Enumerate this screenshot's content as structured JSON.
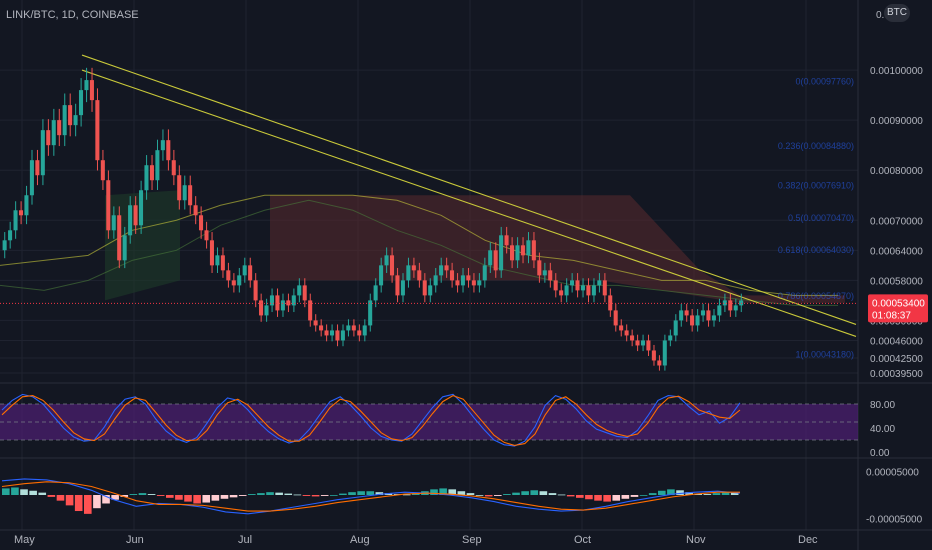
{
  "header": {
    "title": "LINK/BTC, 1D, COINBASE",
    "currency_badge": "BTC"
  },
  "colors": {
    "background": "#131722",
    "grid": "#1f2330",
    "candle_up": "#26a69a",
    "candle_down": "#ef5350",
    "trendline": "#c9c93a",
    "cloud_bear": "#5a2a2e",
    "cloud_bull": "#1e3a2a",
    "stoch_k": "#2962ff",
    "stoch_d": "#ff6d00",
    "stoch_band": "#4b1f6f",
    "price_label": "#f23645"
  },
  "chart_data": [
    {
      "type": "candlestick",
      "title": "LINK/BTC, 1D, COINBASE",
      "unit": "BTC",
      "x_ticks": [
        "May",
        "Jun",
        "Jul",
        "Aug",
        "Sep",
        "Oct",
        "Nov",
        "Dec"
      ],
      "y_ticks": [
        "0.00100000",
        "0.00090000",
        "0.00080000",
        "0.00070000",
        "0.00064000",
        "0.00058000",
        "0.00050000",
        "0.00046000",
        "0.00042500",
        "0.00039500"
      ],
      "top_tick_partial": "0.00",
      "ylim": [
        0.000385,
        0.00112
      ],
      "current_price": "0.00053400",
      "countdown": "01:08:37",
      "fib_levels": [
        {
          "label": "0(0.00097760)",
          "value": 0.0009776
        },
        {
          "label": "0.236(0.00084880)",
          "value": 0.0008488
        },
        {
          "label": "0.382(0.00076910)",
          "value": 0.0007691
        },
        {
          "label": "0.5(0.00070470)",
          "value": 0.0007047
        },
        {
          "label": "0.618(0.00064030)",
          "value": 0.0006403
        },
        {
          "label": "0.786(0.00054870)",
          "value": 0.0005487
        },
        {
          "label": "1(0.00043180)",
          "value": 0.0004318
        }
      ],
      "close_series": [
        0.00066,
        0.00068,
        0.00072,
        0.00071,
        0.00075,
        0.00082,
        0.00079,
        0.00088,
        0.00085,
        0.0009,
        0.00087,
        0.00093,
        0.00089,
        0.00091,
        0.00096,
        0.00098,
        0.00094,
        0.00082,
        0.00078,
        0.00068,
        0.00071,
        0.00062,
        0.00067,
        0.00073,
        0.00069,
        0.00076,
        0.00081,
        0.00078,
        0.00084,
        0.00086,
        0.00082,
        0.00079,
        0.00074,
        0.00077,
        0.00073,
        0.00071,
        0.00068,
        0.00066,
        0.00061,
        0.00063,
        0.0006,
        0.00058,
        0.00057,
        0.00059,
        0.00061,
        0.00058,
        0.00054,
        0.00051,
        0.00053,
        0.00055,
        0.00052,
        0.00054,
        0.00053,
        0.00055,
        0.00057,
        0.00054,
        0.0005,
        0.00049,
        0.00048,
        0.00047,
        0.00048,
        0.00046,
        0.00048,
        0.00049,
        0.00048,
        0.00047,
        0.00049,
        0.00054,
        0.00057,
        0.00061,
        0.00063,
        0.00059,
        0.00055,
        0.00058,
        0.00061,
        0.0006,
        0.00058,
        0.00055,
        0.00057,
        0.00059,
        0.00061,
        0.0006,
        0.00058,
        0.00057,
        0.00059,
        0.00058,
        0.00057,
        0.00058,
        0.00061,
        0.00064,
        0.0006,
        0.00067,
        0.00065,
        0.00062,
        0.00065,
        0.00063,
        0.00066,
        0.00062,
        0.00059,
        0.0006,
        0.00058,
        0.00056,
        0.00055,
        0.00057,
        0.00058,
        0.00056,
        0.00057,
        0.00055,
        0.00057,
        0.00058,
        0.00055,
        0.00052,
        0.00049,
        0.00048,
        0.00047,
        0.00046,
        0.00045,
        0.00046,
        0.00044,
        0.00042,
        0.00041,
        0.00046,
        0.00047,
        0.0005,
        0.00052,
        0.00051,
        0.00049,
        0.00051,
        0.00052,
        0.0005,
        0.00051,
        0.00053,
        0.00054,
        0.00052,
        0.00053,
        0.00054
      ],
      "baseline_lines": [
        {
          "name": "",
          "values": [
            0.00061,
            0.00062,
            0.00063,
            0.00068,
            0.0007,
            0.00073,
            0.00075,
            0.00075,
            0.00075,
            0.00074,
            0.00071,
            0.00066,
            0.00063,
            0.00062,
            0.0006,
            0.00058,
            0.00058,
            0.00056,
            0.00055,
            0.00055
          ]
        },
        {
          "name": "",
          "values": [
            0.00057,
            0.00056,
            0.00058,
            0.00062,
            0.00064,
            0.00069,
            0.00072,
            0.00074,
            0.00072,
            0.00068,
            0.00065,
            0.00061,
            0.00059,
            0.00057,
            0.00057,
            0.00056,
            0.00055,
            0.00054,
            0.00053,
            0.00053
          ]
        }
      ],
      "trendline_1": [
        [
          0.0,
          0.00103
        ],
        [
          1.0,
          0.000492
        ]
      ],
      "trendline_2": [
        [
          0.0,
          0.001
        ],
        [
          1.0,
          0.000468
        ]
      ]
    },
    {
      "type": "line",
      "name": "stochastic",
      "y_ticks": [
        "80.00",
        "40.00",
        "0.00"
      ],
      "ylim": [
        0,
        100
      ],
      "band": [
        20,
        80
      ],
      "series": [
        {
          "name": "",
          "values": [
            70,
            86,
            96,
            92,
            80,
            60,
            40,
            25,
            18,
            20,
            42,
            70,
            88,
            92,
            80,
            55,
            35,
            22,
            16,
            24,
            48,
            74,
            90,
            86,
            70,
            50,
            34,
            22,
            15,
            20,
            38,
            62,
            84,
            92,
            78,
            60,
            40,
            26,
            20,
            18,
            30,
            52,
            74,
            92,
            96,
            80,
            58,
            38,
            20,
            12,
            10,
            18,
            42,
            78,
            94,
            88,
            72,
            52,
            38,
            32,
            26,
            24,
            36,
            60,
            86,
            94,
            92,
            76,
            62,
            68,
            48,
            58,
            82
          ]
        },
        {
          "name": "",
          "values": [
            62,
            78,
            92,
            94,
            86,
            70,
            50,
            32,
            22,
            19,
            30,
            55,
            78,
            90,
            86,
            66,
            45,
            28,
            19,
            20,
            36,
            62,
            82,
            88,
            78,
            60,
            42,
            28,
            18,
            18,
            28,
            50,
            74,
            88,
            84,
            68,
            50,
            32,
            22,
            19,
            24,
            42,
            64,
            84,
            94,
            88,
            68,
            48,
            28,
            16,
            11,
            14,
            30,
            62,
            86,
            92,
            80,
            62,
            46,
            36,
            30,
            26,
            30,
            48,
            74,
            90,
            93,
            84,
            70,
            64,
            58,
            56,
            70
          ]
        }
      ]
    },
    {
      "type": "bar",
      "name": "macd",
      "y_ticks": [
        "0.00005000",
        "-0.00005000"
      ],
      "ylim": [
        -7e-05,
        7e-05
      ],
      "histogram": [
        1.4e-05,
        1.6e-05,
        1.2e-05,
        9e-06,
        5e-06,
        -4e-06,
        -1.2e-05,
        -2.2e-05,
        -3.4e-05,
        -4e-05,
        -2.8e-05,
        -1.8e-05,
        -1e-05,
        -4e-06,
        2e-06,
        4e-06,
        2e-06,
        -2e-06,
        -6e-06,
        -1e-05,
        -1.4e-05,
        -1.8e-05,
        -1.6e-05,
        -1.2e-05,
        -8e-06,
        -5e-06,
        -2e-06,
        2e-06,
        4e-06,
        6e-06,
        5e-06,
        3e-06,
        1e-06,
        -2e-06,
        -3e-06,
        -2e-06,
        0.0,
        3e-06,
        6e-06,
        8e-06,
        8e-06,
        6e-06,
        4e-06,
        2e-06,
        1e-06,
        4e-06,
        8e-06,
        1.2e-05,
        1.4e-05,
        1.2e-05,
        8e-06,
        4e-06,
        0.0,
        -3e-06,
        -2e-06,
        2e-06,
        5e-06,
        8e-06,
        1e-05,
        8e-06,
        4e-06,
        1e-06,
        -3e-06,
        -6e-06,
        -9e-06,
        -1.2e-05,
        -1.4e-05,
        -1.2e-05,
        -8e-06,
        -4e-06,
        0.0,
        4e-06,
        9e-06,
        1.2e-05,
        1e-05,
        6e-06,
        3e-06,
        2e-06,
        4e-06,
        6e-06,
        5e-06
      ],
      "series": [
        {
          "name": "",
          "values": [
            3e-05,
            3.4e-05,
            3.2e-05,
            2.4e-05,
            1e-05,
            -1e-05,
            -2.4e-05,
            -1.8e-05,
            -2e-05,
            -2.6e-05,
            -3.6e-05,
            -4e-05,
            -3.4e-05,
            -2.6e-05,
            -1.8e-05,
            -1e-05,
            -4e-06,
            2e-06,
            6e-06,
            4e-06,
            0.0,
            -6e-06,
            -1.4e-05,
            -2.4e-05,
            -3e-05,
            -3.4e-05,
            -3.2e-05,
            -2.4e-05,
            -1.4e-05,
            -6e-06,
            2e-06,
            6e-06,
            8e-06,
            4e-06
          ]
        },
        {
          "name": "",
          "values": [
            1.8e-05,
            2.4e-05,
            2.8e-05,
            2.6e-05,
            1.8e-05,
            4e-06,
            -1.2e-05,
            -2e-05,
            -2e-05,
            -2.2e-05,
            -2.8e-05,
            -3.4e-05,
            -3.4e-05,
            -3e-05,
            -2.4e-05,
            -1.6e-05,
            -1e-05,
            -4e-06,
            2e-06,
            4e-06,
            2e-06,
            -2e-06,
            -8e-06,
            -1.6e-05,
            -2.4e-05,
            -3e-05,
            -3.2e-05,
            -2.8e-05,
            -2e-05,
            -1.2e-05,
            -4e-06,
            2e-06,
            6e-06,
            6e-06
          ]
        }
      ]
    }
  ]
}
